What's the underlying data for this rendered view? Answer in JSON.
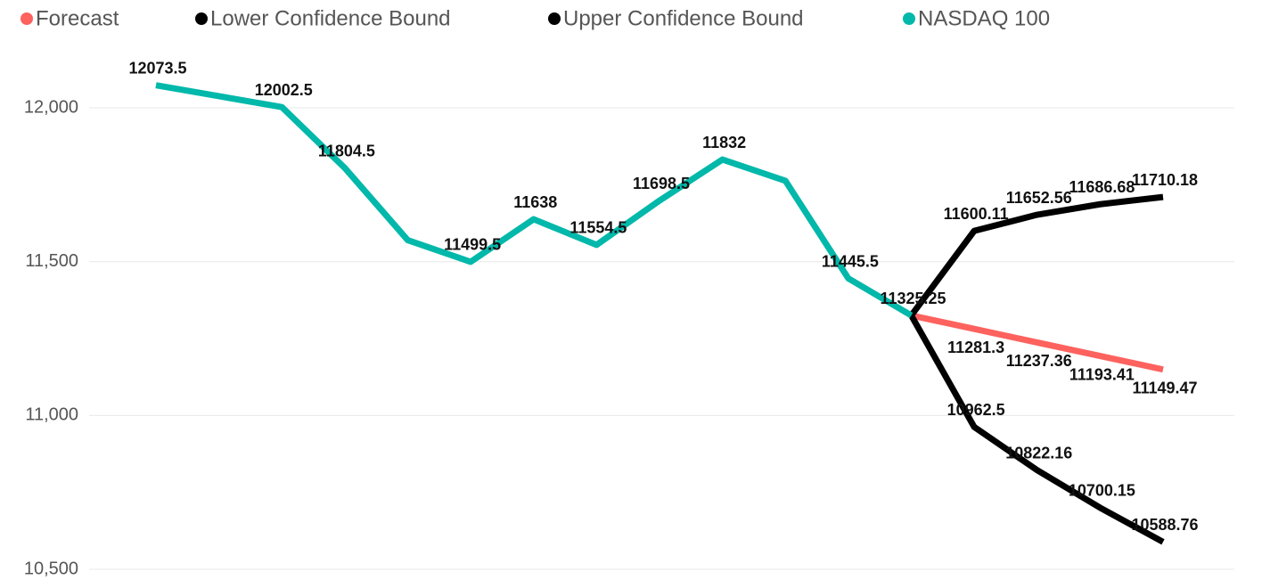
{
  "chart_data": {
    "type": "line",
    "categories": [
      null,
      null,
      null,
      null,
      null,
      null,
      null,
      null,
      null,
      null,
      null,
      null,
      null,
      null,
      null,
      null,
      null
    ],
    "ylim": [
      10500,
      12200
    ],
    "yticks": [
      {
        "value": 10500,
        "label": "10,500"
      },
      {
        "value": 11000,
        "label": "11,000"
      },
      {
        "value": 11500,
        "label": "11,500"
      },
      {
        "value": 12000,
        "label": "12,000"
      }
    ],
    "grid": true,
    "legend": "top",
    "series": [
      {
        "name": "Forecast",
        "color": "#fd625e",
        "values": [
          null,
          null,
          null,
          null,
          null,
          null,
          null,
          null,
          null,
          null,
          null,
          null,
          11325.25,
          11281.3,
          11237.36,
          11193.41,
          11149.47
        ],
        "value_labels": [
          null,
          null,
          null,
          null,
          null,
          null,
          null,
          null,
          null,
          null,
          null,
          null,
          null,
          "11281.3",
          "11237.36",
          "11193.41",
          "11149.47"
        ]
      },
      {
        "name": "Lower Confidence Bound",
        "color": "#000000",
        "values": [
          null,
          null,
          null,
          null,
          null,
          null,
          null,
          null,
          null,
          null,
          null,
          null,
          11325.25,
          10962.5,
          10822.16,
          10700.15,
          10588.76
        ],
        "value_labels": [
          null,
          null,
          null,
          null,
          null,
          null,
          null,
          null,
          null,
          null,
          null,
          null,
          null,
          "10962.5",
          "10822.16",
          "10700.15",
          "10588.76"
        ]
      },
      {
        "name": "Upper Confidence Bound",
        "color": "#000000",
        "values": [
          null,
          null,
          null,
          null,
          null,
          null,
          null,
          null,
          null,
          null,
          null,
          null,
          11325.25,
          11600.11,
          11652.56,
          11686.68,
          11710.18
        ],
        "value_labels": [
          null,
          null,
          null,
          null,
          null,
          null,
          null,
          null,
          null,
          null,
          null,
          null,
          null,
          "11600.11",
          "11652.56",
          "11686.68",
          "11710.18"
        ]
      },
      {
        "name": "NASDAQ 100",
        "color": "#01b8aa",
        "values": [
          12073.5,
          12038,
          12002.5,
          11804.5,
          11570,
          11499.5,
          11638,
          11554.5,
          11698.5,
          11832,
          11763,
          11445.5,
          11325.25,
          null,
          null,
          null,
          null
        ],
        "value_labels": [
          "12073.5",
          null,
          "12002.5",
          "11804.5",
          null,
          "11499.5",
          "11638",
          "11554.5",
          "11698.5",
          "11832",
          null,
          "11445.5",
          "11325.25",
          null,
          null,
          null,
          null
        ]
      }
    ]
  }
}
